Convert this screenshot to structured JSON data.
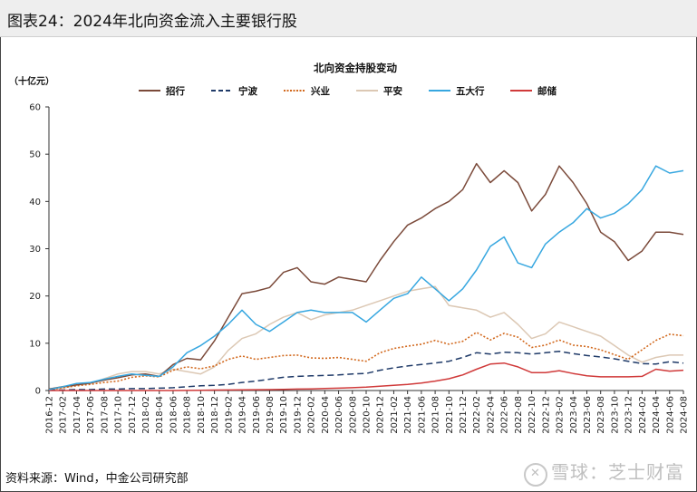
{
  "figure_title": "图表24：2024年北向资金流入主要银行股",
  "source": "资料来源：Wind，中金公司研究部",
  "watermark": "雪球：芝士财富",
  "chart_data": {
    "type": "line",
    "title": "北向资金持股变动",
    "unit": "（十亿元）",
    "ylim": [
      0,
      60
    ],
    "yticks": [
      0,
      10,
      20,
      30,
      40,
      50,
      60
    ],
    "grid": false,
    "legend_position": "top",
    "x_tick_labels": [
      "2016-12",
      "2017-02",
      "2017-04",
      "2017-06",
      "2017-08",
      "2017-10",
      "2017-12",
      "2018-02",
      "2018-04",
      "2018-06",
      "2018-08",
      "2018-10",
      "2018-12",
      "2019-02",
      "2019-04",
      "2019-06",
      "2019-08",
      "2019-10",
      "2019-12",
      "2020-02",
      "2020-04",
      "2020-06",
      "2020-08",
      "2020-10",
      "2020-12",
      "2021-02",
      "2021-04",
      "2021-06",
      "2021-08",
      "2021-10",
      "2021-12",
      "2022-02",
      "2022-04",
      "2022-06",
      "2022-08",
      "2022-10",
      "2022-12",
      "2023-02",
      "2023-04",
      "2023-06",
      "2023-08",
      "2023-10",
      "2023-12",
      "2024-02",
      "2024-04",
      "2024-06",
      "2024-08"
    ],
    "x": [
      "2016-12",
      "2017-02",
      "2017-04",
      "2017-06",
      "2017-08",
      "2017-10",
      "2017-12",
      "2018-02",
      "2018-04",
      "2018-06",
      "2018-08",
      "2018-10",
      "2018-12",
      "2019-02",
      "2019-04",
      "2019-06",
      "2019-08",
      "2019-10",
      "2019-12",
      "2020-02",
      "2020-04",
      "2020-06",
      "2020-08",
      "2020-10",
      "2020-12",
      "2021-02",
      "2021-04",
      "2021-06",
      "2021-08",
      "2021-10",
      "2021-12",
      "2022-02",
      "2022-04",
      "2022-06",
      "2022-08",
      "2022-10",
      "2022-12",
      "2023-02",
      "2023-04",
      "2023-06",
      "2023-08",
      "2023-10",
      "2023-12",
      "2024-02",
      "2024-04",
      "2024-06",
      "2024-08"
    ],
    "series": [
      {
        "name": "招行",
        "color": "#7b4a3a",
        "dash": "solid",
        "values": [
          0.3,
          0.8,
          1.2,
          1.6,
          2.2,
          2.7,
          3.3,
          3.5,
          3.0,
          5.5,
          6.8,
          6.5,
          10.5,
          15.5,
          20.5,
          21.0,
          21.8,
          25.0,
          26.0,
          23.0,
          22.5,
          24.0,
          23.5,
          23.0,
          27.5,
          31.5,
          35.0,
          36.5,
          38.5,
          40.0,
          42.5,
          48.0,
          44.0,
          46.5,
          44.0,
          38.0,
          41.5,
          47.5,
          44.0,
          39.5,
          33.5,
          31.5,
          27.5,
          29.5,
          33.5,
          33.5,
          33.0
        ]
      },
      {
        "name": "宁波",
        "color": "#1f3a68",
        "dash": "7,4",
        "values": [
          0.1,
          0.1,
          0.2,
          0.2,
          0.3,
          0.3,
          0.4,
          0.4,
          0.5,
          0.6,
          0.8,
          1.0,
          1.1,
          1.3,
          1.7,
          2.0,
          2.4,
          2.8,
          3.0,
          3.1,
          3.2,
          3.3,
          3.5,
          3.6,
          4.3,
          4.8,
          5.2,
          5.5,
          5.8,
          6.2,
          7.0,
          8.0,
          7.7,
          8.1,
          8.0,
          7.7,
          8.0,
          8.3,
          7.8,
          7.4,
          7.1,
          6.7,
          6.2,
          5.7,
          5.6,
          6.1,
          5.8
        ]
      },
      {
        "name": "兴业",
        "color": "#d2691e",
        "dash": "2,2",
        "values": [
          0.2,
          0.6,
          1.0,
          1.3,
          1.7,
          2.0,
          2.8,
          3.1,
          2.9,
          4.3,
          5.0,
          4.6,
          5.2,
          6.6,
          7.3,
          6.6,
          7.0,
          7.4,
          7.5,
          6.9,
          6.8,
          7.0,
          6.6,
          6.2,
          8.0,
          8.9,
          9.4,
          9.8,
          10.6,
          9.8,
          10.4,
          12.3,
          10.7,
          12.1,
          11.3,
          9.1,
          9.6,
          10.7,
          9.6,
          9.3,
          8.6,
          7.6,
          6.6,
          8.6,
          10.6,
          11.9,
          11.6
        ]
      },
      {
        "name": "平安",
        "color": "#dcc8b4",
        "dash": "solid",
        "values": [
          0.1,
          0.5,
          1.1,
          1.5,
          2.5,
          3.5,
          4.0,
          4.0,
          3.5,
          4.5,
          4.0,
          3.5,
          5.0,
          8.5,
          11.0,
          12.0,
          14.0,
          15.5,
          16.5,
          15.0,
          16.0,
          16.5,
          17.0,
          18.0,
          19.0,
          20.0,
          21.0,
          21.5,
          22.0,
          18.0,
          17.5,
          17.0,
          15.5,
          16.5,
          14.0,
          11.0,
          12.0,
          14.5,
          13.5,
          12.5,
          11.5,
          9.5,
          7.5,
          6.0,
          7.0,
          7.5,
          7.5
        ]
      },
      {
        "name": "五大行",
        "color": "#37a7e0",
        "dash": "solid",
        "values": [
          0.2,
          0.8,
          1.5,
          1.7,
          2.4,
          3.0,
          3.5,
          3.2,
          3.0,
          5.0,
          8.0,
          9.5,
          11.5,
          14.0,
          17.0,
          14.0,
          12.5,
          14.5,
          16.5,
          17.0,
          16.5,
          16.5,
          16.5,
          14.5,
          17.0,
          19.5,
          20.5,
          24.0,
          21.5,
          19.0,
          21.5,
          25.5,
          30.5,
          32.5,
          27.0,
          26.0,
          31.0,
          33.5,
          35.5,
          38.5,
          36.5,
          37.5,
          39.5,
          42.5,
          47.5,
          46.0,
          46.5
        ]
      },
      {
        "name": "邮储",
        "color": "#d03a3a",
        "dash": "solid",
        "values": [
          0,
          0,
          0,
          0,
          0,
          0,
          0,
          0,
          0,
          0,
          0.02,
          0.05,
          0.1,
          0.12,
          0.15,
          0.18,
          0.2,
          0.25,
          0.3,
          0.35,
          0.45,
          0.5,
          0.6,
          0.7,
          0.9,
          1.1,
          1.3,
          1.6,
          2.0,
          2.5,
          3.3,
          4.5,
          5.6,
          5.8,
          5.0,
          3.8,
          3.8,
          4.2,
          3.6,
          3.1,
          2.9,
          2.9,
          2.9,
          3.0,
          4.5,
          4.1,
          4.3
        ]
      }
    ]
  }
}
